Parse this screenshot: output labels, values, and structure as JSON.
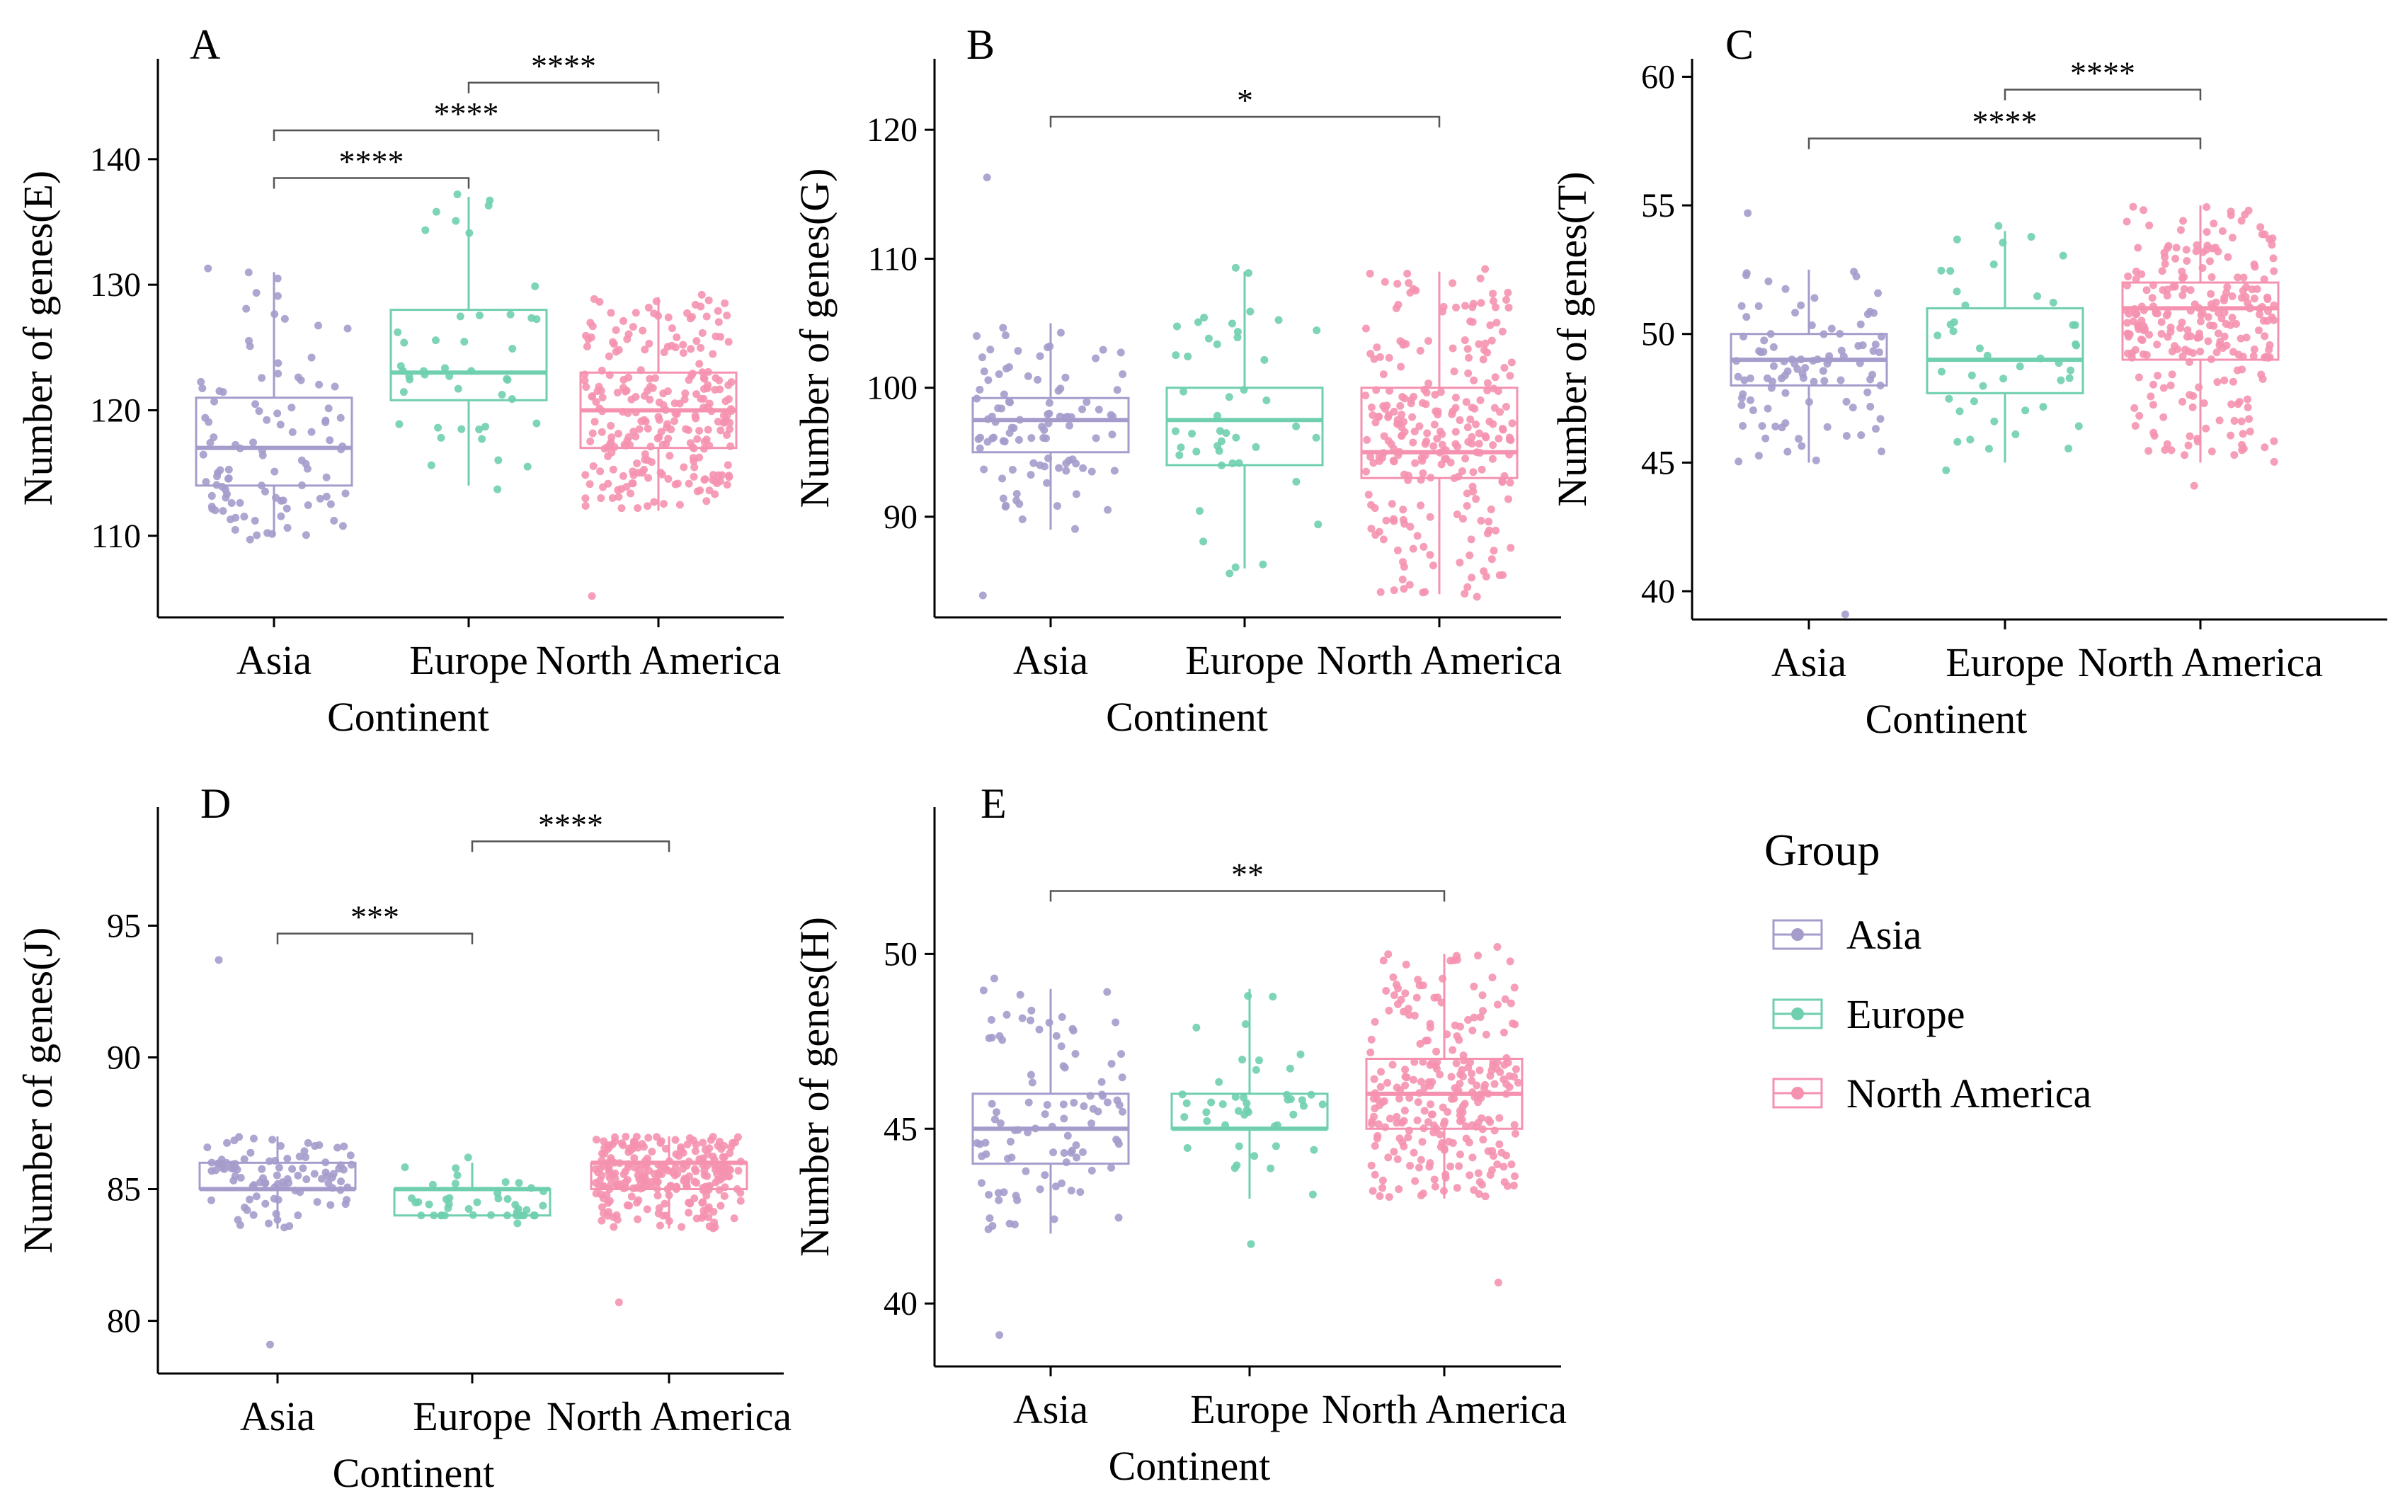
{
  "colors": {
    "Asia": "#a59ccc",
    "Europe": "#6fcfae",
    "North America": "#f592b0",
    "axis": "#000000",
    "bracket": "#555555"
  },
  "legend": {
    "title": "Group",
    "items": [
      {
        "label": "Asia",
        "color_key": "Asia"
      },
      {
        "label": "Europe",
        "color_key": "Europe"
      },
      {
        "label": "North America",
        "color_key": "North America"
      }
    ]
  },
  "chart_data": [
    {
      "type": "box",
      "panel_label": "A",
      "ylabel": "Number of genes(E)",
      "xlabel": "Continent",
      "categories": [
        "Asia",
        "Europe",
        "North America"
      ],
      "ylim": [
        103.5,
        148
      ],
      "yticks": [
        110,
        120,
        130,
        140
      ],
      "boxes": [
        {
          "group": "Asia",
          "q1": 114,
          "median": 117,
          "q3": 121,
          "whisker_low": 110,
          "whisker_high": 131,
          "n": 100,
          "points_min": 109.7,
          "points_max": 131.3
        },
        {
          "group": "Europe",
          "q1": 120.8,
          "median": 123,
          "q3": 128,
          "whisker_low": 114,
          "whisker_high": 137,
          "n": 45,
          "points_min": 113.7,
          "points_max": 137.2
        },
        {
          "group": "North America",
          "q1": 117,
          "median": 120,
          "q3": 123,
          "whisker_low": 112,
          "whisker_high": 129,
          "n": 260,
          "points_min": 105.2,
          "points_max": 129.2
        }
      ],
      "significance": [
        {
          "from": 0,
          "to": 1,
          "label": "****",
          "y": 138.5
        },
        {
          "from": 0,
          "to": 2,
          "label": "****",
          "y": 142.3
        },
        {
          "from": 1,
          "to": 2,
          "label": "****",
          "y": 146.1
        }
      ]
    },
    {
      "type": "box",
      "panel_label": "B",
      "ylabel": "Number of genes(G)",
      "xlabel": "Continent",
      "categories": [
        "Asia",
        "Europe",
        "North America"
      ],
      "ylim": [
        82.2,
        125.5
      ],
      "yticks": [
        90,
        100,
        110,
        120
      ],
      "boxes": [
        {
          "group": "Asia",
          "q1": 95,
          "median": 97.5,
          "q3": 99.2,
          "whisker_low": 89,
          "whisker_high": 105,
          "n": 100,
          "points_min": 83.9,
          "points_max": 116.3
        },
        {
          "group": "Europe",
          "q1": 94,
          "median": 97.5,
          "q3": 100,
          "whisker_low": 86,
          "whisker_high": 109,
          "n": 45,
          "points_min": 85.6,
          "points_max": 109.3
        },
        {
          "group": "North America",
          "q1": 93,
          "median": 95,
          "q3": 100,
          "whisker_low": 84,
          "whisker_high": 109,
          "n": 260,
          "points_min": 83.8,
          "points_max": 109.2
        }
      ],
      "significance": [
        {
          "from": 0,
          "to": 2,
          "label": "*",
          "y": 121
        }
      ]
    },
    {
      "type": "box",
      "panel_label": "C",
      "ylabel": "Number of genes(T)",
      "xlabel": "Continent",
      "categories": [
        "Asia",
        "Europe",
        "North America"
      ],
      "ylim": [
        38.9,
        60.7
      ],
      "yticks": [
        40,
        45,
        50,
        55,
        60
      ],
      "boxes": [
        {
          "group": "Asia",
          "q1": 48,
          "median": 49,
          "q3": 50,
          "whisker_low": 45,
          "whisker_high": 52.5,
          "n": 100,
          "points_min": 39.1,
          "points_max": 54.7
        },
        {
          "group": "Europe",
          "q1": 47.7,
          "median": 49,
          "q3": 51,
          "whisker_low": 45,
          "whisker_high": 54,
          "n": 45,
          "points_min": 44.7,
          "points_max": 54.2
        },
        {
          "group": "North America",
          "q1": 49,
          "median": 51,
          "q3": 52,
          "whisker_low": 45,
          "whisker_high": 55,
          "n": 260,
          "points_min": 44.1,
          "points_max": 54.8
        }
      ],
      "significance": [
        {
          "from": 0,
          "to": 2,
          "label": "****",
          "y": 57.6
        },
        {
          "from": 1,
          "to": 2,
          "label": "****",
          "y": 59.5
        }
      ]
    },
    {
      "type": "box",
      "panel_label": "D",
      "ylabel": "Number of genes(J)",
      "xlabel": "Continent",
      "categories": [
        "Asia",
        "Europe",
        "North America"
      ],
      "ylim": [
        78,
        99.5
      ],
      "yticks": [
        80,
        85,
        90,
        95
      ],
      "boxes": [
        {
          "group": "Asia",
          "q1": 85,
          "median": 85,
          "q3": 86,
          "whisker_low": 83.5,
          "whisker_high": 87,
          "n": 100,
          "points_min": 79.1,
          "points_max": 93.7
        },
        {
          "group": "Europe",
          "q1": 84,
          "median": 85,
          "q3": 85,
          "whisker_low": 84,
          "whisker_high": 86,
          "n": 45,
          "points_min": 83.7,
          "points_max": 86.2
        },
        {
          "group": "North America",
          "q1": 85,
          "median": 86,
          "q3": 86,
          "whisker_low": 83.5,
          "whisker_high": 87,
          "n": 260,
          "points_min": 80.7,
          "points_max": 86.8
        }
      ],
      "significance": [
        {
          "from": 0,
          "to": 1,
          "label": "***",
          "y": 94.7
        },
        {
          "from": 1,
          "to": 2,
          "label": "****",
          "y": 98.2
        }
      ]
    },
    {
      "type": "box",
      "panel_label": "E",
      "ylabel": "Number of genes(H)",
      "xlabel": "Continent",
      "categories": [
        "Asia",
        "Europe",
        "North America"
      ],
      "ylim": [
        38.2,
        54.2
      ],
      "yticks": [
        40,
        45,
        50
      ],
      "boxes": [
        {
          "group": "Asia",
          "q1": 44,
          "median": 45,
          "q3": 46,
          "whisker_low": 42,
          "whisker_high": 49,
          "n": 100,
          "points_min": 39.1,
          "points_max": 49.3
        },
        {
          "group": "Europe",
          "q1": 45,
          "median": 45,
          "q3": 46,
          "whisker_low": 43,
          "whisker_high": 49,
          "n": 45,
          "points_min": 41.7,
          "points_max": 48.8
        },
        {
          "group": "North America",
          "q1": 45,
          "median": 46,
          "q3": 47,
          "whisker_low": 43,
          "whisker_high": 50,
          "n": 260,
          "points_min": 40.6,
          "points_max": 50.2
        }
      ],
      "significance": [
        {
          "from": 0,
          "to": 2,
          "label": "**",
          "y": 51.8
        }
      ]
    }
  ]
}
